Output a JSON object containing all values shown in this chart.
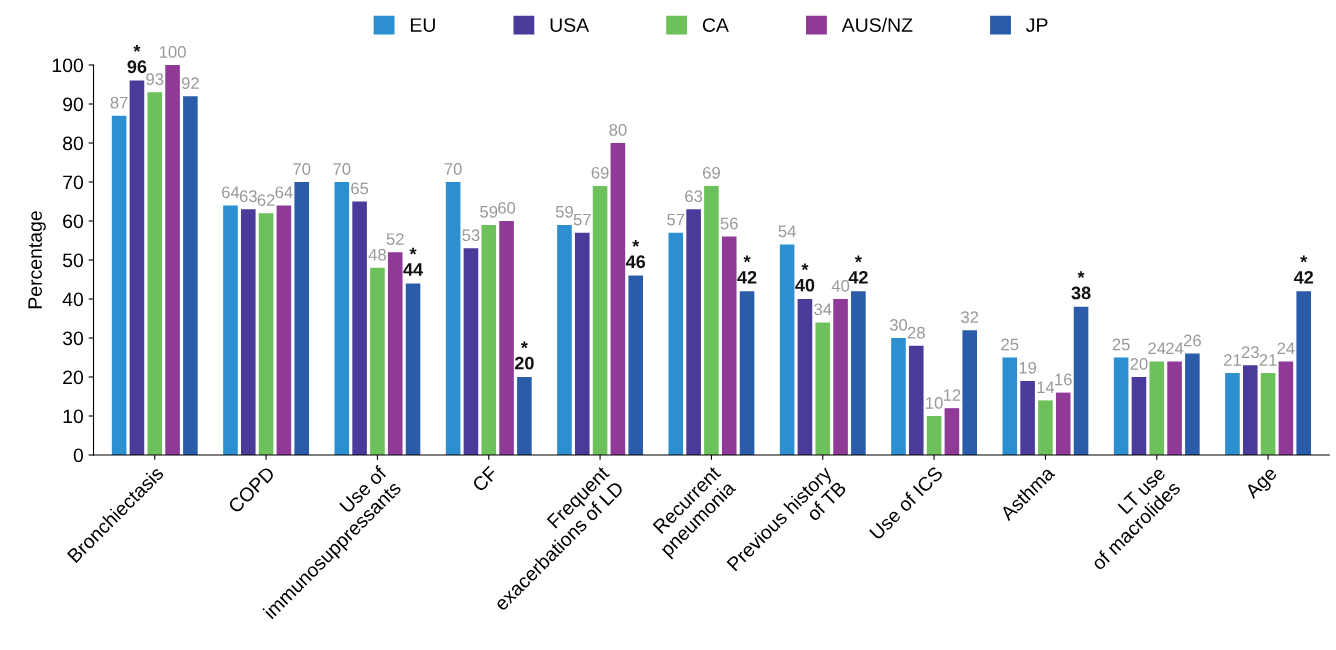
{
  "chart_data": {
    "type": "bar",
    "ylabel": "Percentage",
    "categories": [
      "Bronchiectasis",
      "COPD",
      "Use of\nimmunosuppressants",
      "CF",
      "Frequent\nexacerbations of LD",
      "Recurrent\npneumonia",
      "Previous history\nof TB",
      "Use of ICS",
      "Asthma",
      "LT use\nof macrolides",
      "Age"
    ],
    "series": [
      {
        "name": "EU",
        "color": "#2b8fd0",
        "values": [
          87,
          64,
          70,
          70,
          59,
          57,
          54,
          30,
          25,
          25,
          21
        ],
        "value_labels": [
          "87",
          "64",
          "70",
          "70",
          "59",
          "57",
          "54",
          "30",
          "25",
          "25",
          "21"
        ]
      },
      {
        "name": "USA",
        "color": "#4a3a9a",
        "values": [
          96,
          63,
          65,
          53,
          57,
          63,
          40,
          28,
          19,
          20,
          23
        ],
        "value_labels": [
          "*\n96",
          "63",
          "65",
          "53",
          "57",
          "63",
          "*\n40",
          "28",
          "19",
          "20",
          "23"
        ]
      },
      {
        "name": "CA",
        "color": "#6cc15a",
        "values": [
          93,
          62,
          48,
          59,
          69,
          69,
          34,
          10,
          14,
          24,
          21
        ],
        "value_labels": [
          "93",
          "62",
          "48",
          "59",
          "69",
          "69",
          "34",
          "10",
          "14",
          "24",
          "21"
        ]
      },
      {
        "name": "AUS/NZ",
        "color": "#8e3a96",
        "values": [
          100,
          64,
          52,
          60,
          80,
          56,
          40,
          12,
          16,
          24,
          24
        ],
        "value_labels": [
          "100",
          "64",
          "52",
          "60",
          "80",
          "56",
          "40",
          "12",
          "16",
          "24",
          "24"
        ]
      },
      {
        "name": "JP",
        "color": "#2a5caa",
        "values": [
          92,
          70,
          44,
          20,
          46,
          42,
          42,
          32,
          38,
          26,
          42
        ],
        "value_labels": [
          "92",
          "70",
          "*\n44",
          "*\n20",
          "*\n46",
          "*\n42",
          "*\n42",
          "32",
          "*\n38",
          "26",
          "*\n42"
        ]
      }
    ],
    "ylim": [
      0,
      100
    ],
    "yticks": [
      0,
      10,
      20,
      30,
      40,
      50,
      60,
      70,
      80,
      90,
      100
    ],
    "grid": false,
    "legend": "top"
  }
}
